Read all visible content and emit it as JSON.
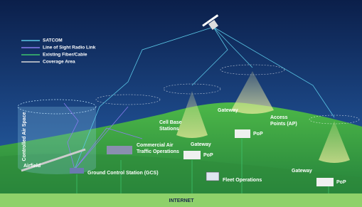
{
  "legend": [
    {
      "label": "SATCOM",
      "color": "#5bc8e6"
    },
    {
      "label": "Line of Sight Radio Link",
      "color": "#8a7cf0"
    },
    {
      "label": "Existing Fiber/Cable",
      "color": "#3ec46d"
    },
    {
      "label": "Coverage Area",
      "color": "#d8d8d8"
    }
  ],
  "labels": {
    "controlled_air_space": "Controlled Air Space",
    "airfield": "Airfield",
    "gcs": "Ground Control Station (GCS)",
    "commercial": [
      "Commercial Air",
      "Traffic Operations"
    ],
    "cell_base": [
      "Cell Base",
      "Stations"
    ],
    "gateway_1": "Gateway",
    "pop_1": "PoP",
    "gateway_2": "Gateway",
    "pop_2": "PoP",
    "access_points": [
      "Access",
      "Points (AP)"
    ],
    "fleet": "Fleet Operations",
    "gateway_3": "Gateway",
    "pop_3": "PoP",
    "internet": "INTERNET"
  }
}
